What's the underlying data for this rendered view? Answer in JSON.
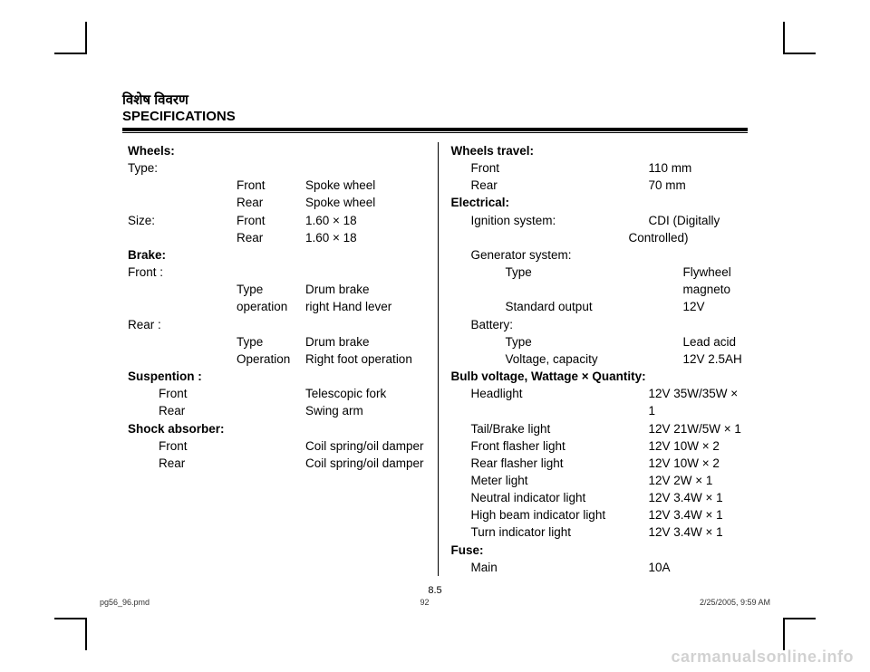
{
  "header": {
    "hindi": "विशेष विवरण",
    "english": "SPECIFICATIONS"
  },
  "left": {
    "wheels_heading": "Wheels:",
    "type_label": "Type:",
    "type_front_k": "Front",
    "type_front_v": "Spoke wheel",
    "type_rear_k": "Rear",
    "type_rear_v": "Spoke wheel",
    "size_label": "Size:",
    "size_front_k": "Front",
    "size_front_v": "1.60 × 18",
    "size_rear_k": "Rear",
    "size_rear_v": "1.60 × 18",
    "brake_heading": "Brake:",
    "front_label": "Front :",
    "front_type_k": "Type",
    "front_type_v": "Drum brake",
    "front_op_k": "operation",
    "front_op_v": "right Hand lever",
    "rear_label": "Rear :",
    "rear_type_k": "Type",
    "rear_type_v": "Drum brake",
    "rear_op_k": "Operation",
    "rear_op_v": "Right foot operation",
    "susp_heading": "Suspention :",
    "susp_front_k": "Front",
    "susp_front_v": "Telescopic fork",
    "susp_rear_k": "Rear",
    "susp_rear_v": "Swing arm",
    "shock_heading": "Shock absorber:",
    "shock_front_k": "Front",
    "shock_front_v": "Coil spring/oil damper",
    "shock_rear_k": "Rear",
    "shock_rear_v": "Coil spring/oil damper"
  },
  "right": {
    "wt_heading": "Wheels travel:",
    "wt_front_k": "Front",
    "wt_front_v": "110 mm",
    "wt_rear_k": "Rear",
    "wt_rear_v": "70 mm",
    "elec_heading": "Electrical:",
    "ign_k": "Ignition system:",
    "ign_v1": "CDI (Digitally",
    "ign_v2": "Controlled)",
    "gen_k": "Generator system:",
    "gen_type_k": "Type",
    "gen_type_v": "Flywheel magneto",
    "gen_std_k": "Standard output",
    "gen_std_v": "12V",
    "bat_k": "Battery:",
    "bat_type_k": "Type",
    "bat_type_v": "Lead acid",
    "bat_vc_k": "Voltage, capacity",
    "bat_vc_v": "12V 2.5AH",
    "bulb_heading": "Bulb voltage, Wattage × Quantity:",
    "hl_k": "Headlight",
    "hl_v": "12V 35W/35W × 1",
    "tb_k": "Tail/Brake light",
    "tb_v": "12V 21W/5W × 1",
    "ff_k": "Front flasher light",
    "ff_v": "12V 10W × 2",
    "rf_k": "Rear flasher light",
    "rf_v": "12V 10W × 2",
    "ml_k": "Meter light",
    "ml_v": "12V 2W × 1",
    "ni_k": "Neutral indicator light",
    "ni_v": "12V 3.4W × 1",
    "hb_k": "High beam indicator light",
    "hb_v": "12V 3.4W × 1",
    "ti_k": "Turn indicator light",
    "ti_v": "12V 3.4W × 1",
    "fuse_heading": "Fuse:",
    "fuse_main_k": "Main",
    "fuse_main_v": "10A"
  },
  "page_number": "8.5",
  "footer": {
    "file": "pg56_96.pmd",
    "page": "92",
    "timestamp": "2/25/2005, 9:59 AM"
  },
  "watermark": "carmanualsonline.info"
}
